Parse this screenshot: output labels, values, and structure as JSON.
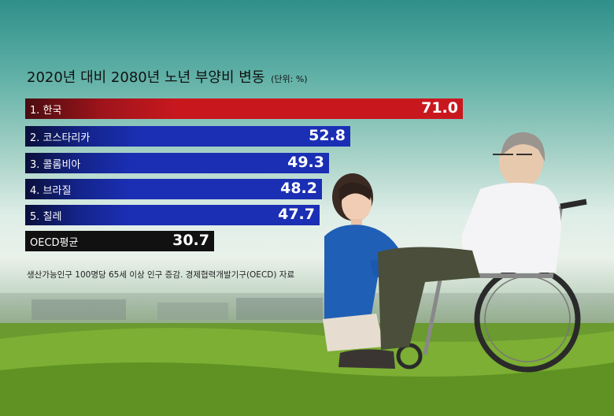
{
  "chart_data": {
    "type": "bar",
    "orientation": "horizontal",
    "title": "2020년 대비 2080년 노년 부양비 변동",
    "unit_label": "(단위: %)",
    "categories": [
      "1. 한국",
      "2. 코스타리카",
      "3. 콜롬비아",
      "4. 브라질",
      "5. 칠레",
      "OECD평균"
    ],
    "values": [
      71.0,
      52.8,
      49.3,
      48.2,
      47.7,
      30.7
    ],
    "value_labels": [
      "71.0",
      "52.8",
      "49.3",
      "48.2",
      "47.7",
      "30.7"
    ],
    "colors": [
      "#c8181e",
      "#1a2fb4",
      "#1a2fb4",
      "#1a2fb4",
      "#1a2fb4",
      "#111111"
    ],
    "xlim": [
      0,
      71.0
    ],
    "grid": false
  },
  "note": "생산가능인구 100명당 65세 이상 인구 증감.   경제협력개발기구(OECD) 자료",
  "photo": {
    "subject": "caregiver-with-elderly-man-in-wheelchair"
  }
}
